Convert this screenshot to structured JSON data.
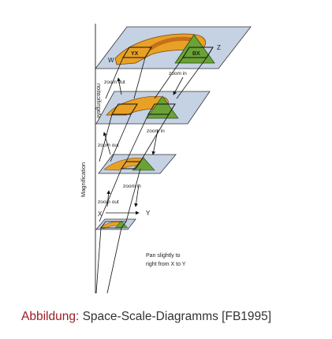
{
  "diagram": {
    "axis_label": "Magnification",
    "axis_label_mirrored": "Magnification",
    "corner_labels": {
      "w": "W",
      "z": "Z",
      "x": "X",
      "y": "Y"
    },
    "shape_labels": {
      "top_left": "YX",
      "top_right": "BX"
    },
    "transitions": [
      {
        "zoom_out": "zoom out",
        "zoom_in": "zoom in"
      },
      {
        "zoom_out": "zoom out",
        "zoom_in": "zoom in"
      },
      {
        "zoom_out": "zoom out",
        "zoom_in": "zoom in"
      }
    ],
    "pan_note": {
      "line1": "Pan slightly to",
      "line2": "right from X to Y"
    },
    "colors": {
      "orange": "#e8a124",
      "orange_dark": "#c46f1a",
      "green": "#6aa236",
      "blue_plane": "#c5d2e3",
      "outline": "#1a1a1a"
    }
  },
  "caption": {
    "label": "Abbildung:",
    "text": "Space-Scale-Diagramms [FB1995]"
  }
}
